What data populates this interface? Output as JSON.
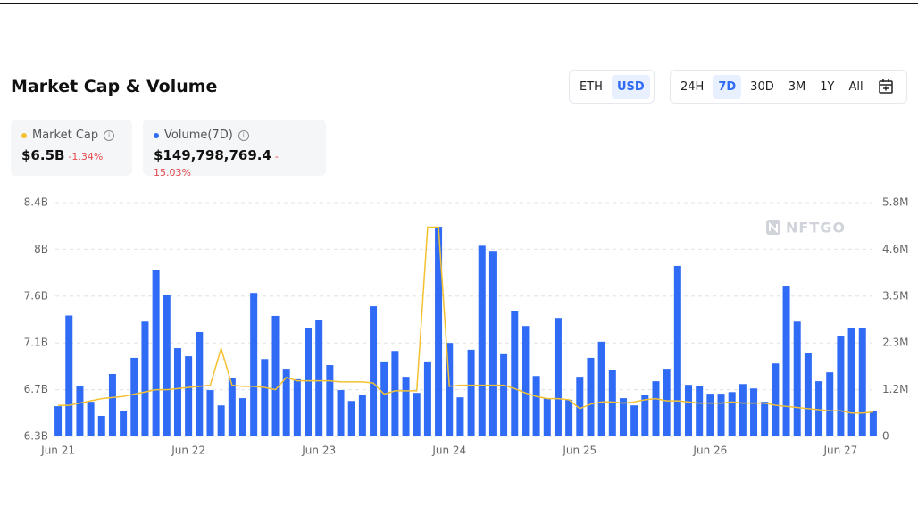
{
  "chart_data": {
    "type": "bar",
    "title": "Market Cap & Volume",
    "watermark": "NFTGO",
    "categories": [
      "Jun 21",
      null,
      null,
      null,
      null,
      null,
      null,
      null,
      null,
      null,
      null,
      null,
      "Jun 22",
      null,
      null,
      null,
      null,
      null,
      null,
      null,
      null,
      null,
      null,
      null,
      "Jun 23",
      null,
      null,
      null,
      null,
      null,
      null,
      null,
      null,
      null,
      null,
      null,
      "Jun 24",
      null,
      null,
      null,
      null,
      null,
      null,
      null,
      null,
      null,
      null,
      null,
      "Jun 25",
      null,
      null,
      null,
      null,
      null,
      null,
      null,
      null,
      null,
      null,
      null,
      "Jun 26",
      null,
      null,
      null,
      null,
      null,
      null,
      null,
      null,
      null,
      null,
      null,
      "Jun 27",
      null,
      null,
      null
    ],
    "ylim": [
      6300000000,
      8400000000
    ],
    "yticks": [
      {
        "value": 6300000000,
        "label": "6.3B"
      },
      {
        "value": 6720000000,
        "label": "6.7B"
      },
      {
        "value": 7140000000,
        "label": "7.1B"
      },
      {
        "value": 7560000000,
        "label": "7.6B"
      },
      {
        "value": 7980000000,
        "label": "8B"
      },
      {
        "value": 8400000000,
        "label": "8.4B"
      }
    ],
    "y2lim": [
      0,
      5800000
    ],
    "y2ticks": [
      0,
      {
        "value": 1160000,
        "label": "1.2M"
      },
      {
        "value": 2320000,
        "label": "2.3M"
      },
      {
        "value": 3480000,
        "label": "3.5M"
      },
      {
        "value": 4640000,
        "label": "4.6M"
      },
      {
        "value": 5800000,
        "label": "5.8M"
      }
    ],
    "grid": true,
    "series": [
      {
        "name": "Market Cap",
        "type": "line",
        "color": "#f5c131",
        "values": [
          6580000000,
          6580000000,
          6600000000,
          6620000000,
          6640000000,
          6650000000,
          6660000000,
          6680000000,
          6700000000,
          6720000000,
          6720000000,
          6730000000,
          6740000000,
          6750000000,
          6760000000,
          7090000000,
          6760000000,
          6750000000,
          6750000000,
          6740000000,
          6720000000,
          6830000000,
          6800000000,
          6800000000,
          6800000000,
          6800000000,
          6790000000,
          6790000000,
          6790000000,
          6780000000,
          6680000000,
          6710000000,
          6710000000,
          6710000000,
          8180000000,
          8180000000,
          6750000000,
          6760000000,
          6760000000,
          6760000000,
          6760000000,
          6760000000,
          6730000000,
          6690000000,
          6660000000,
          6640000000,
          6640000000,
          6630000000,
          6550000000,
          6590000000,
          6610000000,
          6610000000,
          6600000000,
          6610000000,
          6630000000,
          6640000000,
          6620000000,
          6620000000,
          6610000000,
          6600000000,
          6600000000,
          6600000000,
          6610000000,
          6600000000,
          6600000000,
          6600000000,
          6580000000,
          6570000000,
          6560000000,
          6550000000,
          6540000000,
          6530000000,
          6530000000,
          6510000000,
          6510000000,
          6520000000
        ]
      },
      {
        "name": "Volume(7D)",
        "type": "bar",
        "axis": "y2",
        "color": "#2f6bf5",
        "values": [
          750000,
          3000000,
          1260000,
          860000,
          510000,
          1550000,
          640000,
          1950000,
          2850000,
          4140000,
          3520000,
          2190000,
          1990000,
          2590000,
          1150000,
          770000,
          1460000,
          950000,
          3560000,
          1920000,
          2990000,
          1680000,
          1420000,
          2680000,
          2900000,
          1770000,
          1150000,
          880000,
          1020000,
          3230000,
          1840000,
          2120000,
          1480000,
          1080000,
          1840000,
          5200000,
          2320000,
          970000,
          2150000,
          4730000,
          4600000,
          2040000,
          3120000,
          2740000,
          1500000,
          950000,
          2940000,
          910000,
          1480000,
          1950000,
          2350000,
          1640000,
          950000,
          770000,
          1040000,
          1370000,
          1680000,
          4230000,
          1280000,
          1260000,
          1060000,
          1060000,
          1100000,
          1300000,
          1190000,
          860000,
          1810000,
          3740000,
          2850000,
          2080000,
          1370000,
          1590000,
          2500000,
          2700000,
          2700000,
          640000
        ]
      }
    ]
  },
  "currency_toggle": [
    {
      "label": "ETH",
      "active": false
    },
    {
      "label": "USD",
      "active": true
    }
  ],
  "range_toggle": [
    {
      "label": "24H",
      "active": false
    },
    {
      "label": "7D",
      "active": true
    },
    {
      "label": "30D",
      "active": false
    },
    {
      "label": "3M",
      "active": false
    },
    {
      "label": "1Y",
      "active": false
    },
    {
      "label": "All",
      "active": false
    }
  ],
  "stats": [
    {
      "name": "Market Cap",
      "value": "$6.5B",
      "change": "-1.34%"
    },
    {
      "name": "Volume(7D)",
      "value": "$149,798,769.4",
      "change": "-15.03%"
    }
  ]
}
